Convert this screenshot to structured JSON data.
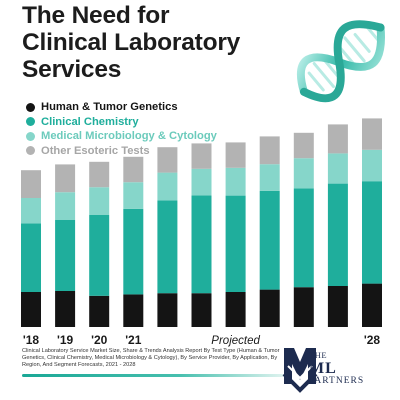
{
  "title_lines": [
    "The Need for",
    "Clinical Laboratory",
    "Services"
  ],
  "chart_data": {
    "type": "bar",
    "stacked": true,
    "title": "The Need for Clinical Laboratory Services",
    "categories": [
      "'18",
      "'19",
      "'20",
      "'21",
      "",
      "",
      "Projected",
      "",
      "",
      "",
      "'28"
    ],
    "ylim": [
      0,
      100
    ],
    "grid": false,
    "legend_position": "top-left",
    "series": [
      {
        "name": "Human & Tumor Genetics",
        "color": "#141414",
        "values": [
          17.5,
          18.0,
          15.6,
          16.3,
          16.9,
          16.9,
          17.5,
          18.7,
          19.9,
          20.5,
          21.7
        ]
      },
      {
        "name": "Clinical Chemistry",
        "color": "#1fae9c",
        "values": [
          34.3,
          35.5,
          40.4,
          42.8,
          46.4,
          48.9,
          48.2,
          49.4,
          49.4,
          51.2,
          51.2
        ]
      },
      {
        "name": "Medical Microbiology & Cytology",
        "color": "#86d6ca",
        "values": [
          12.7,
          13.9,
          13.9,
          13.3,
          13.9,
          13.3,
          13.9,
          13.3,
          15.1,
          15.1,
          15.7
        ]
      },
      {
        "name": "Other Esoteric Tests",
        "color": "#b3b3b3",
        "values": [
          13.9,
          13.9,
          12.7,
          12.7,
          12.7,
          12.7,
          12.7,
          13.9,
          12.7,
          14.5,
          15.7
        ]
      }
    ]
  },
  "source_text": "Clinical Laboratory Service Market Size, Share & Trends Analysis Report By Test Type (Human & Tumor Genetics, Clinical Chemistry, Medical Microbiology & Cytology), By Service Provider, By Application, By Region, And Segment Forecasts, 2021 - 2028",
  "logo": {
    "the": "THE",
    "ml": "ML",
    "partners": "PARTNERS"
  },
  "colors": {
    "title": "#1c1c1c",
    "teal": "#1fae9c",
    "light_teal": "#86d6ca",
    "gray": "#b3b3b3",
    "black": "#141414",
    "navy": "#1d2b4f"
  }
}
